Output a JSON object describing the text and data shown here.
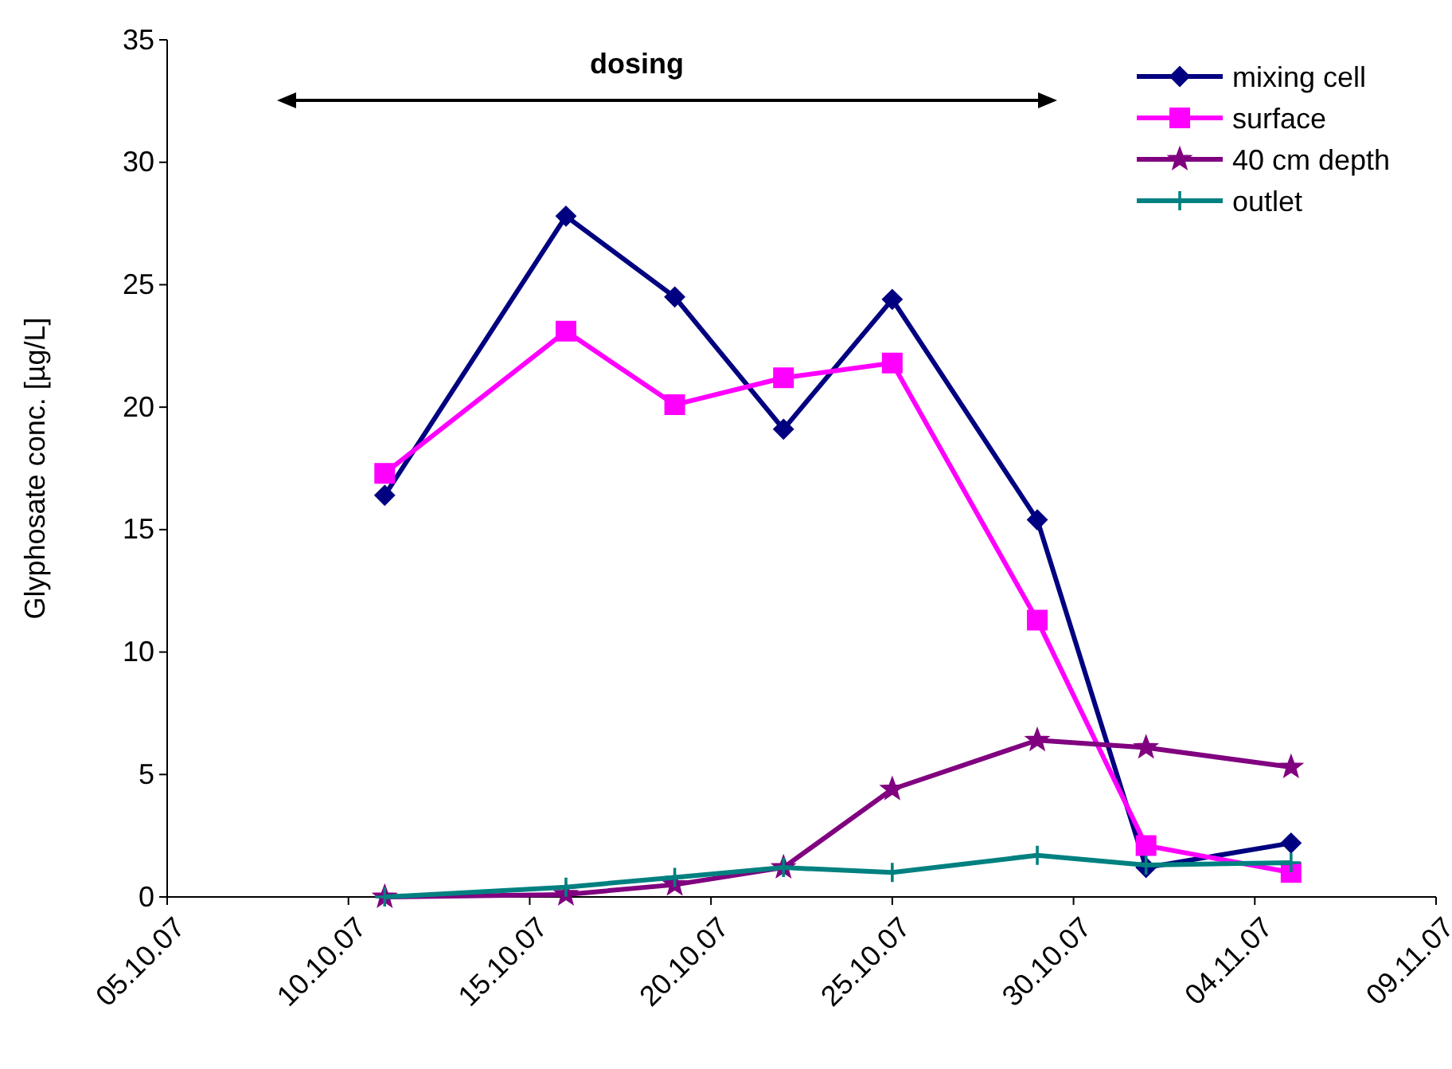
{
  "chart_data": {
    "type": "line",
    "ylabel": "Glyphosate conc. [µg/L]",
    "annotations": [
      "dosing"
    ],
    "x": [
      "--10-11",
      "--10-16",
      "--10-19",
      "--10-22",
      "--10-25",
      "--10-29",
      "--11-01",
      "--11-05"
    ],
    "xlim": [
      "--10-05",
      "--11-09"
    ],
    "xticks": [
      {
        "value": "--10-05",
        "label": "05.10.07"
      },
      {
        "value": "--10-10",
        "label": "10.10.07"
      },
      {
        "value": "--10-15",
        "label": "15.10.07"
      },
      {
        "value": "--10-20",
        "label": "20.10.07"
      },
      {
        "value": "--10-25",
        "label": "25.10.07"
      },
      {
        "value": "--10-30",
        "label": "30.10.07"
      },
      {
        "value": "--11-04",
        "label": "04.11.07"
      },
      {
        "value": "--11-09",
        "label": "09.11.07"
      }
    ],
    "ylim": [
      0,
      35
    ],
    "yticks": [
      0,
      5,
      10,
      15,
      20,
      25,
      30,
      35
    ],
    "grid": false,
    "legend": "top right",
    "line_style": "solid",
    "series": [
      {
        "name": "mixing cell",
        "color": "#000080",
        "marker": "diamond",
        "values": [
          16.4,
          27.8,
          24.5,
          19.1,
          24.4,
          15.4,
          1.2,
          2.2
        ]
      },
      {
        "name": "surface",
        "color": "#ff00ff",
        "marker": "square",
        "values": [
          17.3,
          23.1,
          20.1,
          21.2,
          21.8,
          11.3,
          2.1,
          1.0
        ]
      },
      {
        "name": "40 cm depth",
        "color": "#800080",
        "marker": "star",
        "values": [
          0,
          0.1,
          0.5,
          1.2,
          4.4,
          6.4,
          6.1,
          5.3
        ]
      },
      {
        "name": "outlet",
        "color": "#008080",
        "marker": "cross",
        "values": [
          0,
          0.4,
          0.8,
          1.2,
          1.0,
          1.7,
          1.3,
          1.4
        ]
      }
    ]
  }
}
